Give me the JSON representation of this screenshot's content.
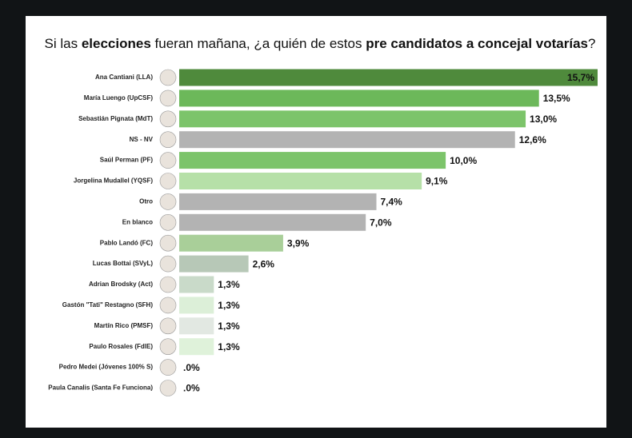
{
  "chart_data": {
    "type": "hbar",
    "title": [
      {
        "text": "Si las ",
        "bold": false
      },
      {
        "text": "elecciones",
        "bold": true
      },
      {
        "text": " fueran mañana, ¿a quién de estos ",
        "bold": false
      },
      {
        "text": "pre candidatos a concejal votarías",
        "bold": true
      },
      {
        "text": "?",
        "bold": false
      }
    ],
    "categories": [
      "Ana Cantiani (LLA)",
      "María Luengo (UpCSF)",
      "Sebastián Pignata (MdT)",
      "NS - NV",
      "Saúl Perman (PF)",
      "Jorgelina Mudallel (YQSF)",
      "Otro",
      "En blanco",
      "Pablo Landó (FC)",
      "Lucas Bottai (SVyL)",
      "Adrian Brodsky (Act)",
      "Gastón \"Tati\" Restagno (SFH)",
      "Martín Rico (PMSF)",
      "Paulo Rosales (FdlE)",
      "Pedro Medei (Jóvenes 100% S)",
      "Paula Canalis (Santa Fe Funciona)"
    ],
    "values": [
      15.7,
      13.5,
      13.0,
      12.6,
      10.0,
      9.1,
      7.4,
      7.0,
      3.9,
      2.6,
      1.3,
      1.3,
      1.3,
      1.3,
      0,
      0
    ],
    "value_labels": [
      "15,7%",
      "13,5%",
      "13,0%",
      "12,6%",
      "10,0%",
      "9,1%",
      "7,4%",
      "7,0%",
      "3,9%",
      "2,6%",
      "1,3%",
      "1,3%",
      "1,3%",
      "1,3%",
      ".0%",
      ".0%"
    ],
    "colors": [
      "#4f8a3c",
      "#6cb85a",
      "#7cc46a",
      "#b3b3b3",
      "#7cc46a",
      "#b6e0a8",
      "#b3b3b3",
      "#b3b3b3",
      "#a9cf99",
      "#b7c8b7",
      "#c9dac9",
      "#dcefd8",
      "#e2e8e2",
      "#dff2da",
      "#dff2da",
      "#dff2da"
    ],
    "xlim": [
      0,
      15.7
    ]
  }
}
